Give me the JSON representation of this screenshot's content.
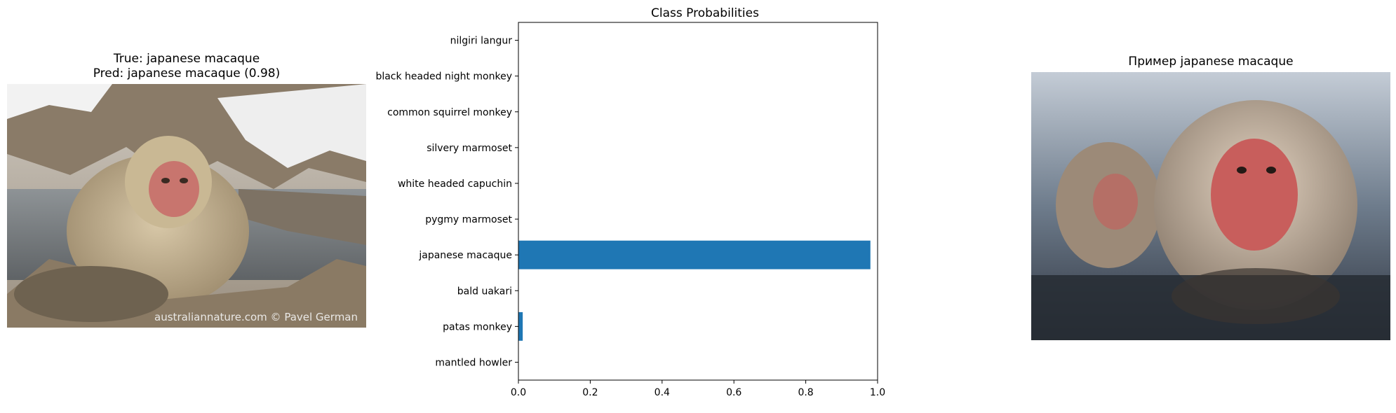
{
  "left_panel": {
    "title_line1": "True: japanese macaque",
    "title_line2": "Pred: japanese macaque (0.98)",
    "watermark": "australiannature.com © Pavel German"
  },
  "right_panel": {
    "title": "Пример japanese macaque"
  },
  "chart_data": {
    "type": "bar",
    "orientation": "horizontal",
    "title": "Class Probabilities",
    "categories": [
      "mantled howler",
      "patas monkey",
      "bald uakari",
      "japanese macaque",
      "pygmy marmoset",
      "white headed capuchin",
      "silvery marmoset",
      "common squirrel monkey",
      "black headed night monkey",
      "nilgiri langur"
    ],
    "values": [
      0.0,
      0.012,
      0.0,
      0.98,
      0.0,
      0.0,
      0.0,
      0.0,
      0.0,
      0.0
    ],
    "xlim": [
      0,
      1.0
    ],
    "xticks": [
      "0.0",
      "0.2",
      "0.4",
      "0.6",
      "0.8",
      "1.0"
    ],
    "xlabel": "",
    "ylabel": "",
    "grid": false,
    "bar_color": "#1f77b4"
  }
}
